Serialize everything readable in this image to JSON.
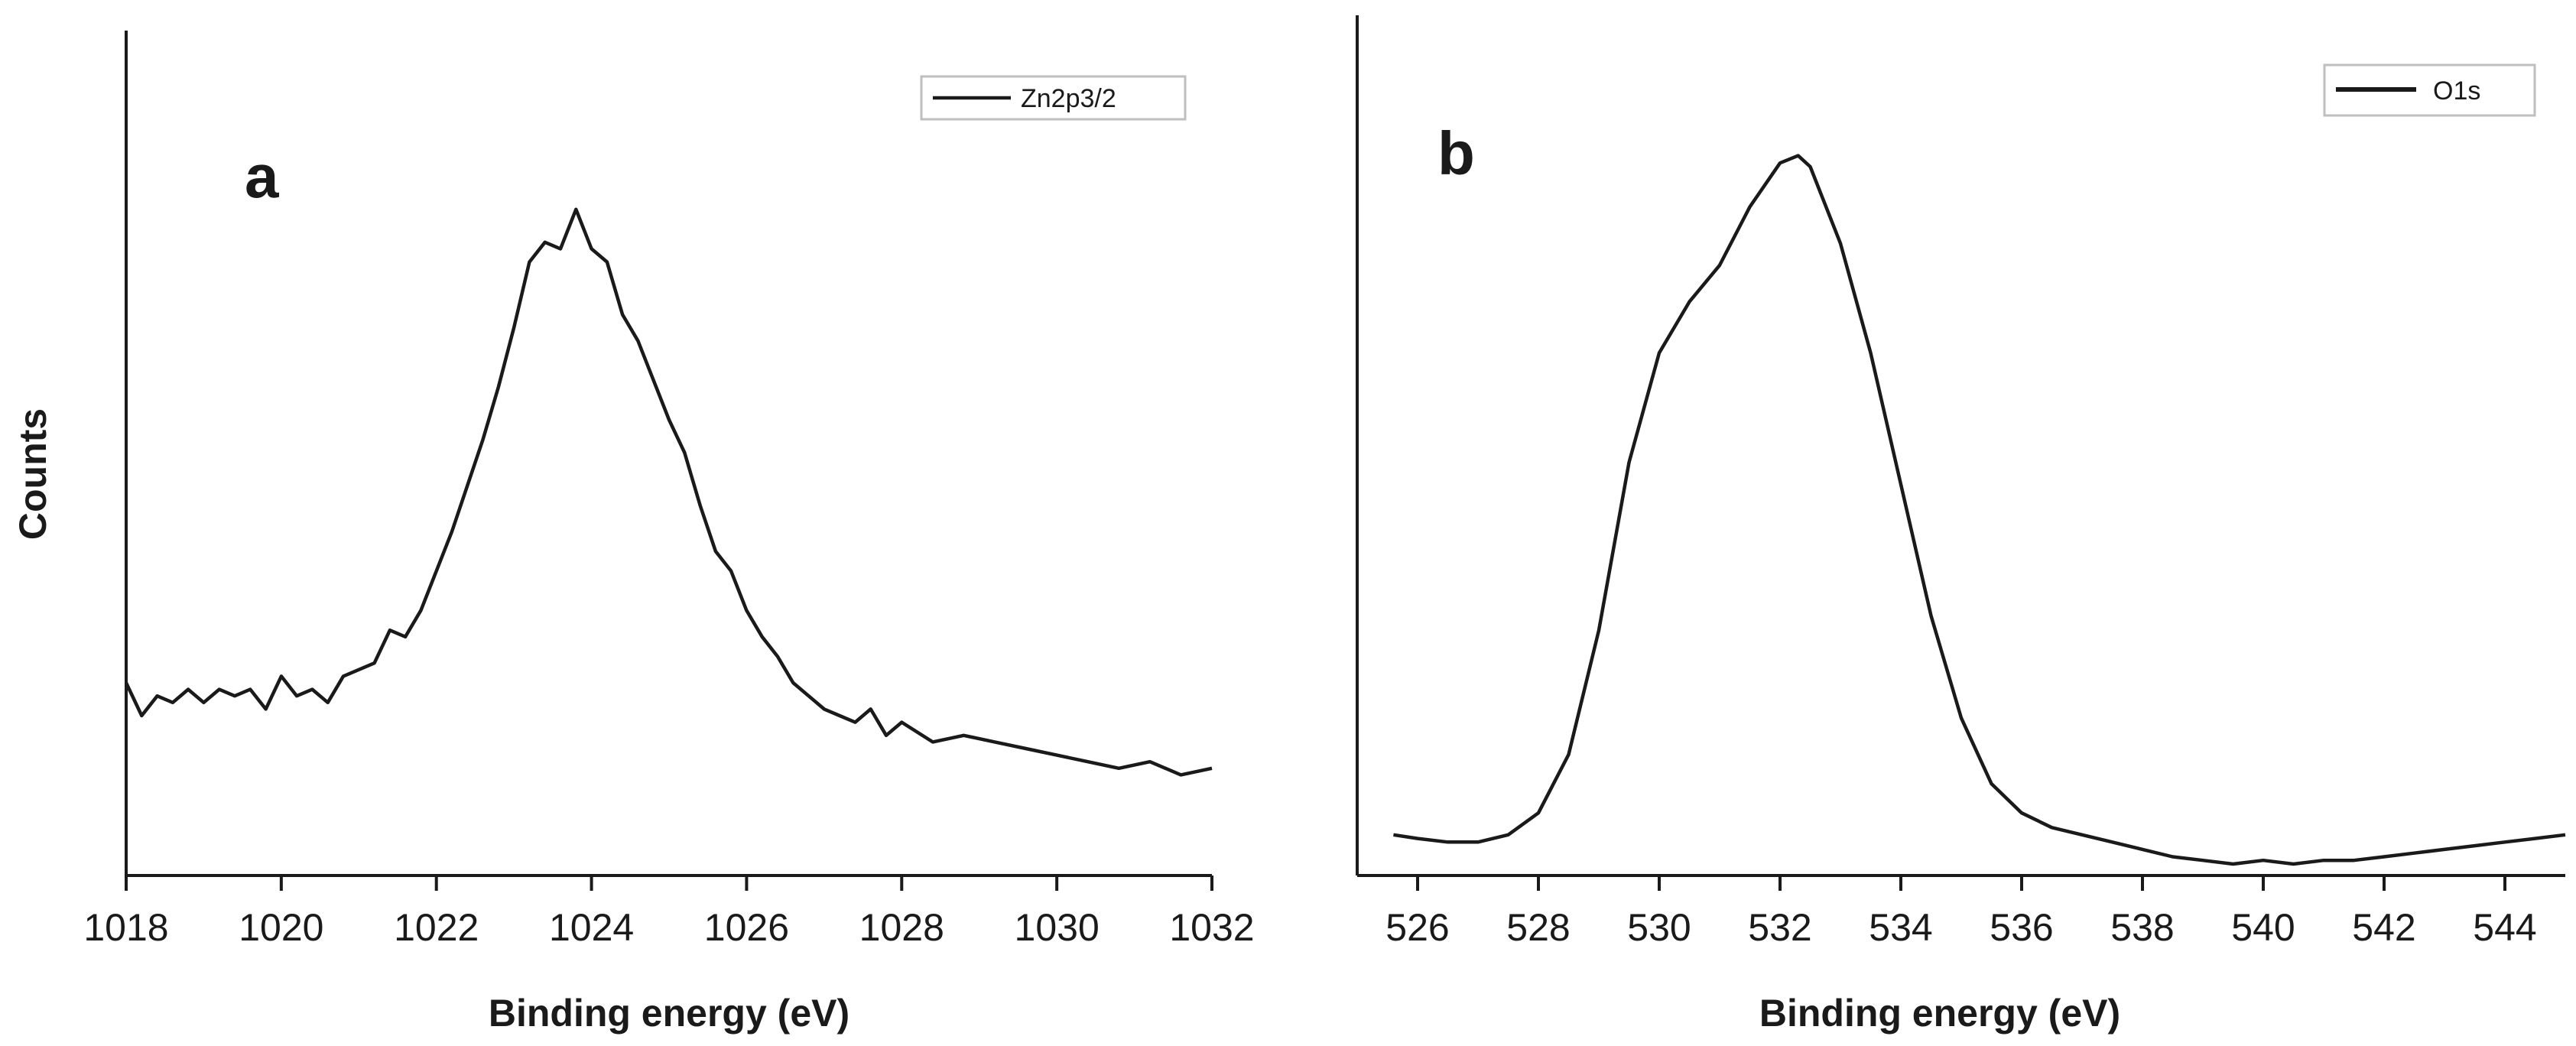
{
  "figure": {
    "ylabel": "Counts"
  },
  "chart_data": [
    {
      "type": "line",
      "panel_label": "a",
      "xlabel": "Binding energy (eV)",
      "ylabel": "Counts",
      "xlim": [
        1018,
        1032
      ],
      "ylim": [
        0,
        1
      ],
      "x_ticks": [
        "1018",
        "1020",
        "1022",
        "1024",
        "1026",
        "1028",
        "1030",
        "1032"
      ],
      "y_ticks": [],
      "grid": false,
      "legend": {
        "position": "top-right"
      },
      "series": [
        {
          "name": "Zn2p3/2",
          "color": "#1a1a1a",
          "x": [
            1018.0,
            1018.2,
            1018.4,
            1018.6,
            1018.8,
            1019.0,
            1019.2,
            1019.4,
            1019.6,
            1019.8,
            1020.0,
            1020.2,
            1020.4,
            1020.6,
            1020.8,
            1021.0,
            1021.2,
            1021.4,
            1021.6,
            1021.8,
            1022.0,
            1022.2,
            1022.4,
            1022.6,
            1022.8,
            1023.0,
            1023.2,
            1023.4,
            1023.6,
            1023.8,
            1024.0,
            1024.2,
            1024.4,
            1024.6,
            1024.8,
            1025.0,
            1025.2,
            1025.4,
            1025.6,
            1025.8,
            1026.0,
            1026.2,
            1026.4,
            1026.6,
            1026.8,
            1027.0,
            1027.2,
            1027.4,
            1027.6,
            1027.8,
            1028.0,
            1028.4,
            1028.8,
            1029.2,
            1029.6,
            1030.0,
            1030.4,
            1030.8,
            1031.2,
            1031.6,
            1032.0
          ],
          "y": [
            0.2,
            0.15,
            0.18,
            0.17,
            0.19,
            0.17,
            0.19,
            0.18,
            0.19,
            0.16,
            0.21,
            0.18,
            0.19,
            0.17,
            0.21,
            0.22,
            0.23,
            0.28,
            0.27,
            0.31,
            0.37,
            0.43,
            0.5,
            0.57,
            0.65,
            0.74,
            0.84,
            0.87,
            0.86,
            0.92,
            0.86,
            0.84,
            0.76,
            0.72,
            0.66,
            0.6,
            0.55,
            0.47,
            0.4,
            0.37,
            0.31,
            0.27,
            0.24,
            0.2,
            0.18,
            0.16,
            0.15,
            0.14,
            0.16,
            0.12,
            0.14,
            0.11,
            0.12,
            0.11,
            0.1,
            0.09,
            0.08,
            0.07,
            0.08,
            0.06,
            0.07
          ]
        }
      ]
    },
    {
      "type": "line",
      "panel_label": "b",
      "xlabel": "Binding energy (eV)",
      "ylabel": "",
      "xlim": [
        525,
        545
      ],
      "ylim": [
        0,
        1
      ],
      "x_ticks": [
        "526",
        "528",
        "530",
        "532",
        "534",
        "536",
        "538",
        "540",
        "542",
        "544"
      ],
      "y_ticks": [],
      "grid": false,
      "legend": {
        "position": "top-right"
      },
      "series": [
        {
          "name": "O1s",
          "color": "#1a1a1a",
          "x": [
            525.6,
            526.0,
            526.5,
            527.0,
            527.5,
            528.0,
            528.5,
            529.0,
            529.5,
            530.0,
            530.5,
            531.0,
            531.5,
            532.0,
            532.3,
            532.5,
            533.0,
            533.5,
            534.0,
            534.5,
            535.0,
            535.5,
            536.0,
            536.5,
            537.0,
            537.5,
            538.0,
            538.5,
            539.0,
            539.5,
            540.0,
            540.5,
            541.0,
            541.5,
            542.0,
            542.5,
            543.0,
            543.5,
            544.0,
            544.5,
            545.0
          ],
          "y": [
            0.04,
            0.035,
            0.03,
            0.03,
            0.04,
            0.07,
            0.15,
            0.32,
            0.55,
            0.7,
            0.77,
            0.82,
            0.9,
            0.96,
            0.97,
            0.955,
            0.85,
            0.7,
            0.52,
            0.34,
            0.2,
            0.11,
            0.07,
            0.05,
            0.04,
            0.03,
            0.02,
            0.01,
            0.005,
            0.0,
            0.005,
            0.0,
            0.005,
            0.005,
            0.01,
            0.015,
            0.02,
            0.025,
            0.03,
            0.035,
            0.04
          ]
        }
      ]
    }
  ]
}
